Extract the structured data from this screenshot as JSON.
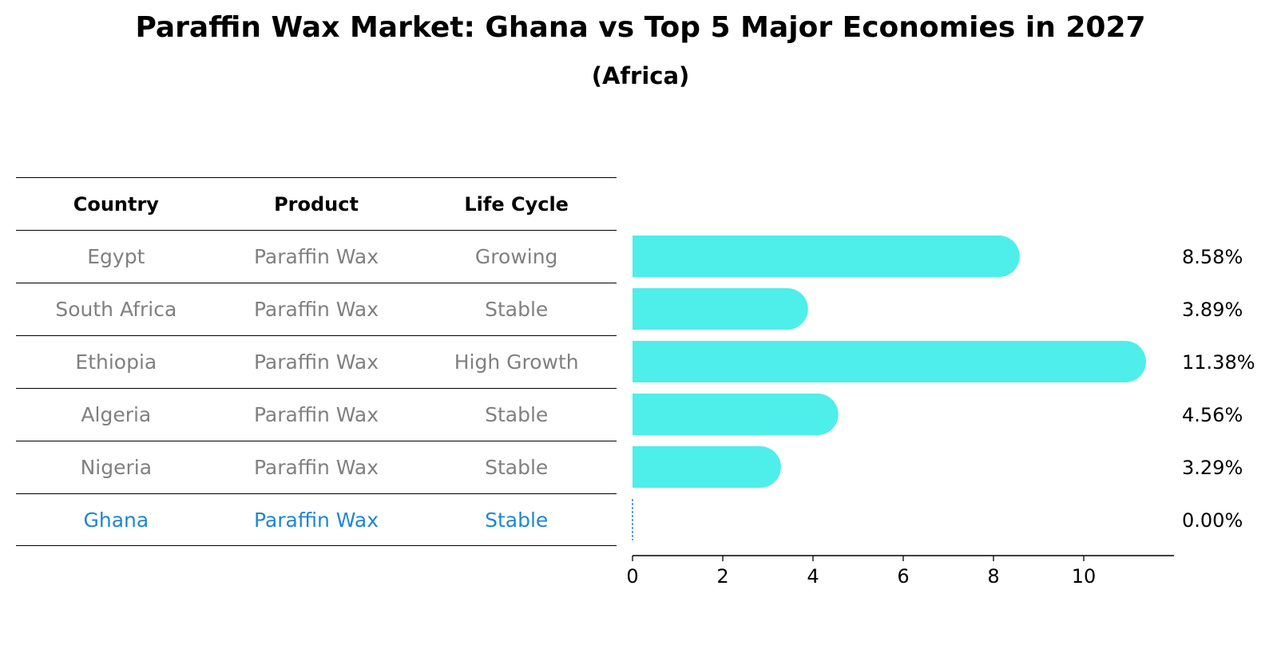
{
  "title": "Paraffin Wax Market: Ghana vs Top 5 Major Economies in 2027",
  "subtitle": "(Africa)",
  "table": {
    "headers": [
      "Country",
      "Product",
      "Life Cycle"
    ],
    "rows": [
      {
        "country": "Egypt",
        "product": "Paraffin Wax",
        "life_cycle": "Growing"
      },
      {
        "country": "South Africa",
        "product": "Paraffin Wax",
        "life_cycle": "Stable"
      },
      {
        "country": "Ethiopia",
        "product": "Paraffin Wax",
        "life_cycle": "High Growth"
      },
      {
        "country": "Algeria",
        "product": "Paraffin Wax",
        "life_cycle": "Stable"
      },
      {
        "country": "Nigeria",
        "product": "Paraffin Wax",
        "life_cycle": "Stable"
      },
      {
        "country": "Ghana",
        "product": "Paraffin Wax",
        "life_cycle": "Stable"
      }
    ]
  },
  "colors": {
    "bar": "#4eeeea",
    "highlight": "#1f86d3",
    "muted_text": "#808080"
  },
  "chart_data": {
    "type": "bar",
    "orientation": "horizontal",
    "categories": [
      "Egypt",
      "South Africa",
      "Ethiopia",
      "Algeria",
      "Nigeria",
      "Ghana"
    ],
    "values": [
      8.58,
      3.89,
      11.38,
      4.56,
      3.29,
      0.0
    ],
    "value_labels": [
      "8.58%",
      "3.89%",
      "11.38%",
      "4.56%",
      "3.29%",
      "0.00%"
    ],
    "xlim": [
      0,
      12
    ],
    "xticks": [
      0,
      2,
      4,
      6,
      8,
      10
    ],
    "xlabel": "",
    "ylabel": "",
    "grid": false
  }
}
